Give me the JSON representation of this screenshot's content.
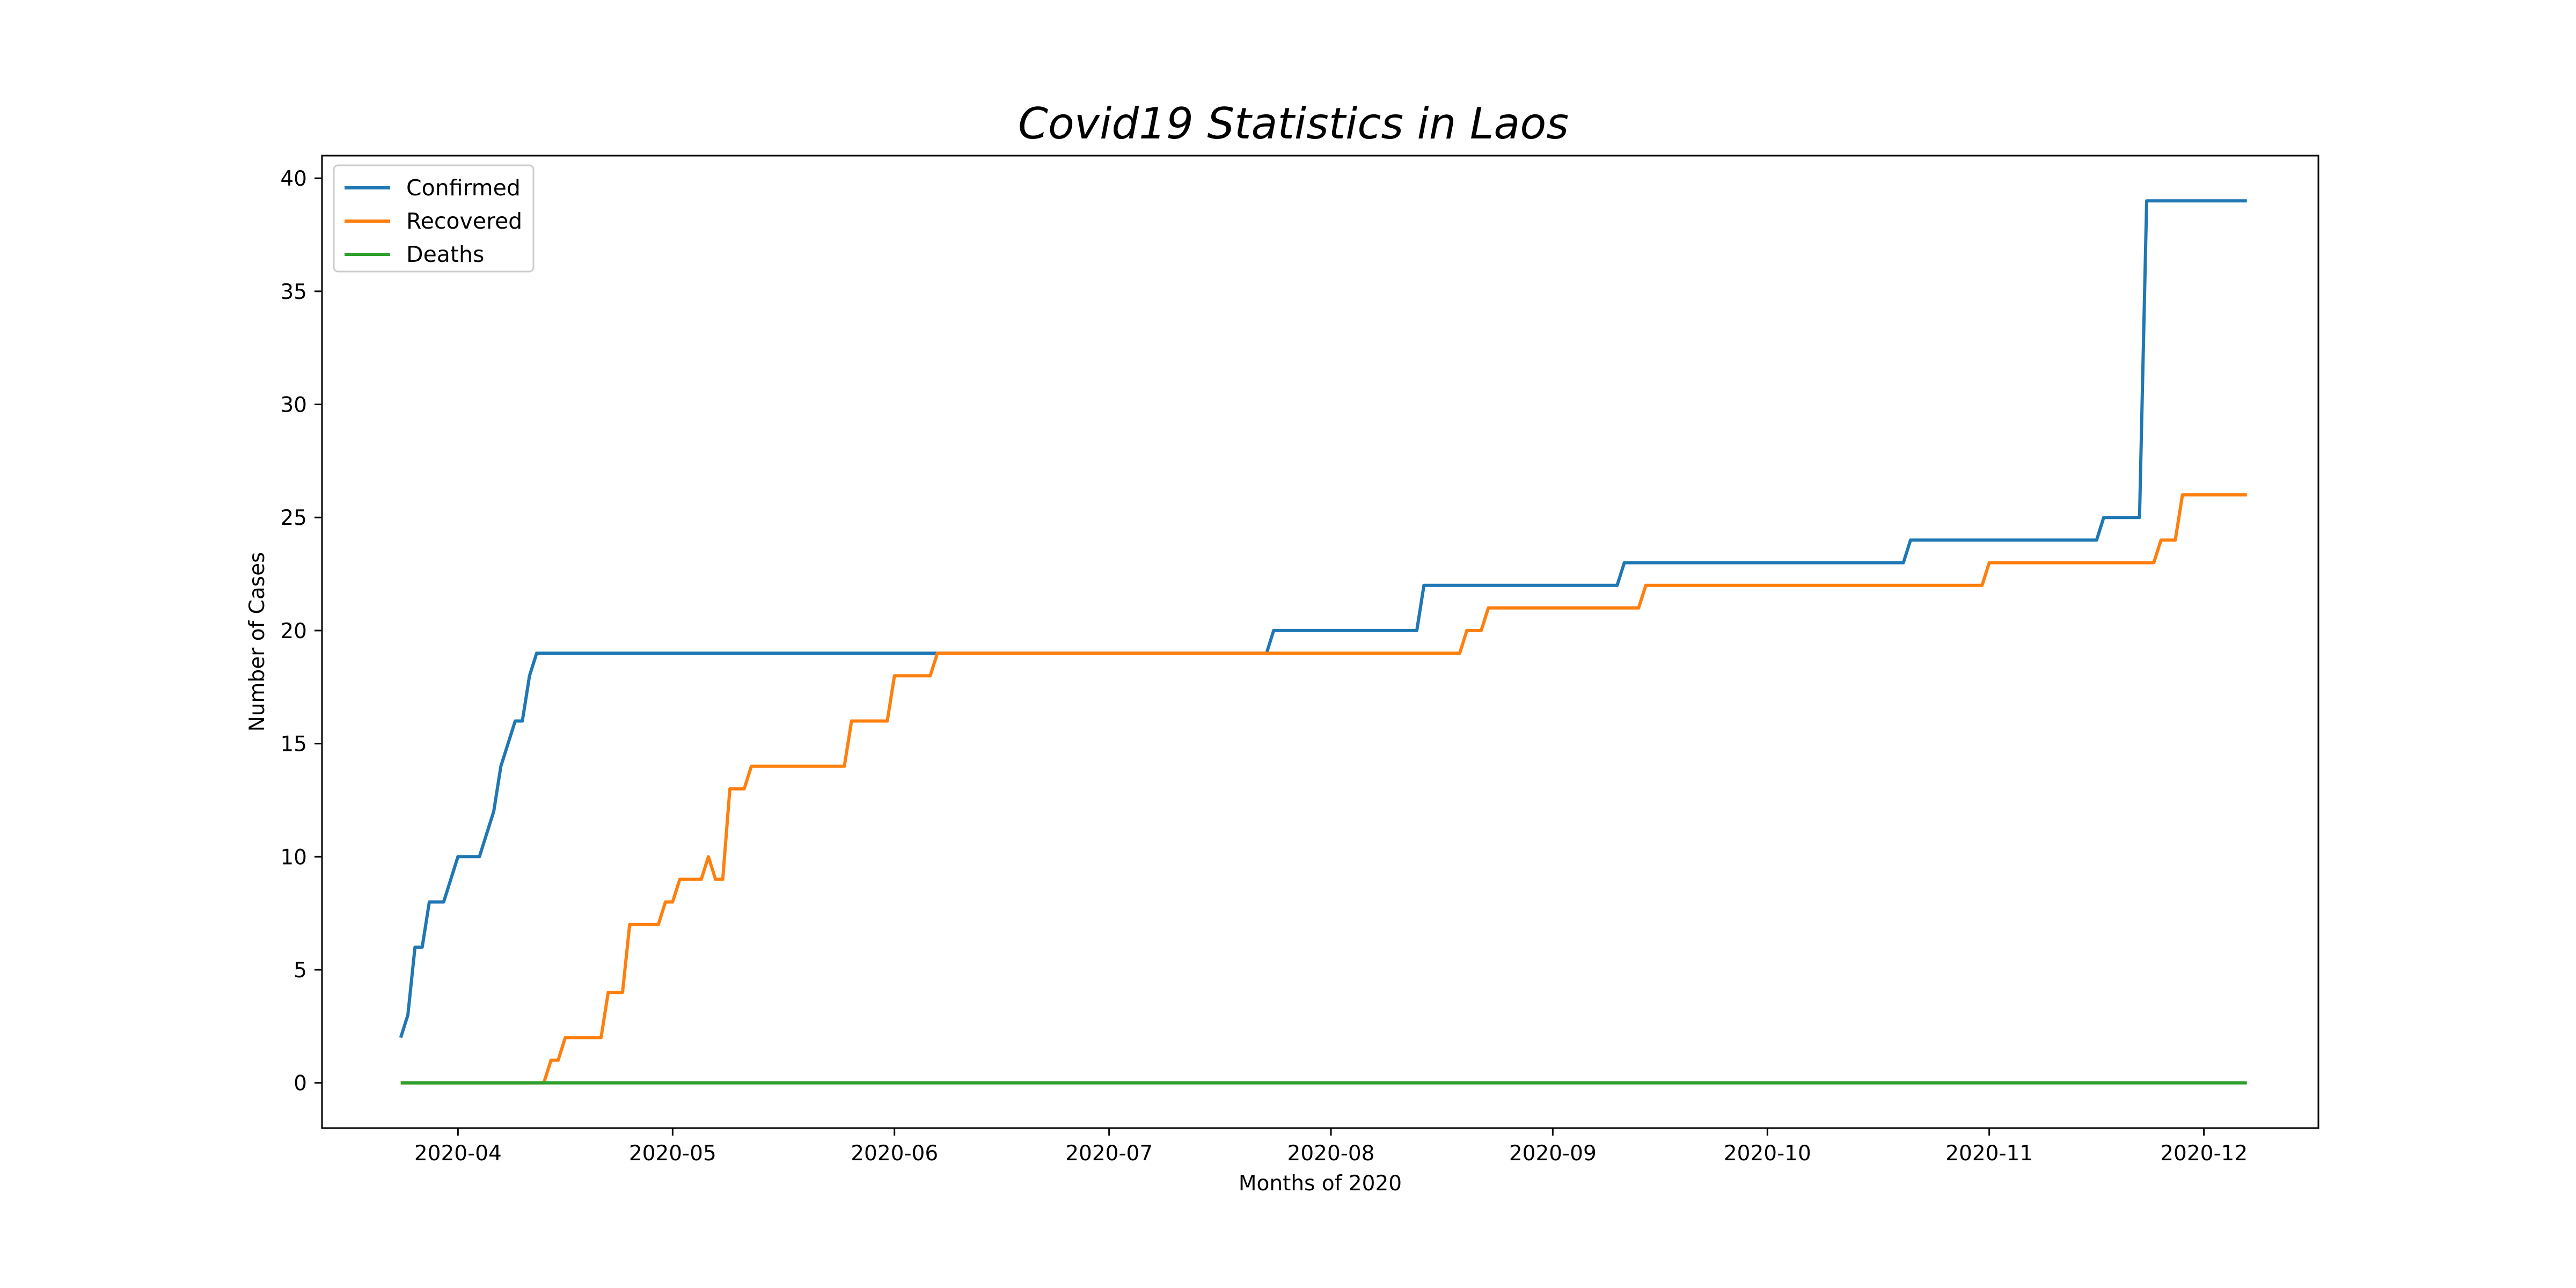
{
  "chart_data": {
    "type": "line",
    "title": "Covid19 Statistics in Laos",
    "xlabel": "Months of 2020",
    "ylabel": "Number of Cases",
    "xlim": [
      "2020-03-13",
      "2020-12-17"
    ],
    "ylim": [
      -2,
      41
    ],
    "x_ticks": [
      "2020-04-01",
      "2020-05-01",
      "2020-06-01",
      "2020-07-01",
      "2020-08-01",
      "2020-09-01",
      "2020-10-01",
      "2020-11-01",
      "2020-12-01"
    ],
    "x_tick_labels": [
      "2020-04",
      "2020-05",
      "2020-06",
      "2020-07",
      "2020-08",
      "2020-09",
      "2020-10",
      "2020-11",
      "2020-12"
    ],
    "y_ticks": [
      0,
      5,
      10,
      15,
      20,
      25,
      30,
      35,
      40
    ],
    "y_tick_labels": [
      "0",
      "5",
      "10",
      "15",
      "20",
      "25",
      "30",
      "35",
      "40"
    ],
    "grid": false,
    "legend_position": "top-left",
    "series": [
      {
        "name": "Confirmed",
        "color": "#1f77b4",
        "points": [
          [
            "2020-03-24",
            2
          ],
          [
            "2020-03-25",
            3
          ],
          [
            "2020-03-26",
            6
          ],
          [
            "2020-03-27",
            6
          ],
          [
            "2020-03-28",
            8
          ],
          [
            "2020-03-30",
            8
          ],
          [
            "2020-04-01",
            10
          ],
          [
            "2020-04-04",
            10
          ],
          [
            "2020-04-06",
            12
          ],
          [
            "2020-04-07",
            14
          ],
          [
            "2020-04-09",
            16
          ],
          [
            "2020-04-10",
            16
          ],
          [
            "2020-04-11",
            18
          ],
          [
            "2020-04-12",
            19
          ],
          [
            "2020-07-23",
            19
          ],
          [
            "2020-07-24",
            20
          ],
          [
            "2020-08-13",
            20
          ],
          [
            "2020-08-14",
            22
          ],
          [
            "2020-09-10",
            22
          ],
          [
            "2020-09-11",
            23
          ],
          [
            "2020-10-20",
            23
          ],
          [
            "2020-10-21",
            24
          ],
          [
            "2020-11-16",
            24
          ],
          [
            "2020-11-17",
            25
          ],
          [
            "2020-11-22",
            25
          ],
          [
            "2020-11-23",
            39
          ],
          [
            "2020-12-07",
            39
          ]
        ]
      },
      {
        "name": "Recovered",
        "color": "#ff7f0e",
        "points": [
          [
            "2020-03-24",
            0
          ],
          [
            "2020-04-13",
            0
          ],
          [
            "2020-04-14",
            1
          ],
          [
            "2020-04-15",
            1
          ],
          [
            "2020-04-16",
            2
          ],
          [
            "2020-04-21",
            2
          ],
          [
            "2020-04-22",
            4
          ],
          [
            "2020-04-24",
            4
          ],
          [
            "2020-04-25",
            7
          ],
          [
            "2020-04-29",
            7
          ],
          [
            "2020-04-30",
            8
          ],
          [
            "2020-05-01",
            8
          ],
          [
            "2020-05-02",
            9
          ],
          [
            "2020-05-05",
            9
          ],
          [
            "2020-05-06",
            10
          ],
          [
            "2020-05-07",
            9
          ],
          [
            "2020-05-08",
            9
          ],
          [
            "2020-05-09",
            13
          ],
          [
            "2020-05-11",
            13
          ],
          [
            "2020-05-12",
            14
          ],
          [
            "2020-05-25",
            14
          ],
          [
            "2020-05-26",
            16
          ],
          [
            "2020-05-31",
            16
          ],
          [
            "2020-06-01",
            18
          ],
          [
            "2020-06-06",
            18
          ],
          [
            "2020-06-07",
            19
          ],
          [
            "2020-08-19",
            19
          ],
          [
            "2020-08-20",
            20
          ],
          [
            "2020-08-22",
            20
          ],
          [
            "2020-08-23",
            21
          ],
          [
            "2020-09-13",
            21
          ],
          [
            "2020-09-14",
            22
          ],
          [
            "2020-10-31",
            22
          ],
          [
            "2020-11-01",
            23
          ],
          [
            "2020-11-24",
            23
          ],
          [
            "2020-11-25",
            24
          ],
          [
            "2020-11-27",
            24
          ],
          [
            "2020-11-28",
            26
          ],
          [
            "2020-12-07",
            26
          ]
        ]
      },
      {
        "name": "Deaths",
        "color": "#2ca02c",
        "points": [
          [
            "2020-03-24",
            0
          ],
          [
            "2020-12-07",
            0
          ]
        ]
      }
    ]
  }
}
